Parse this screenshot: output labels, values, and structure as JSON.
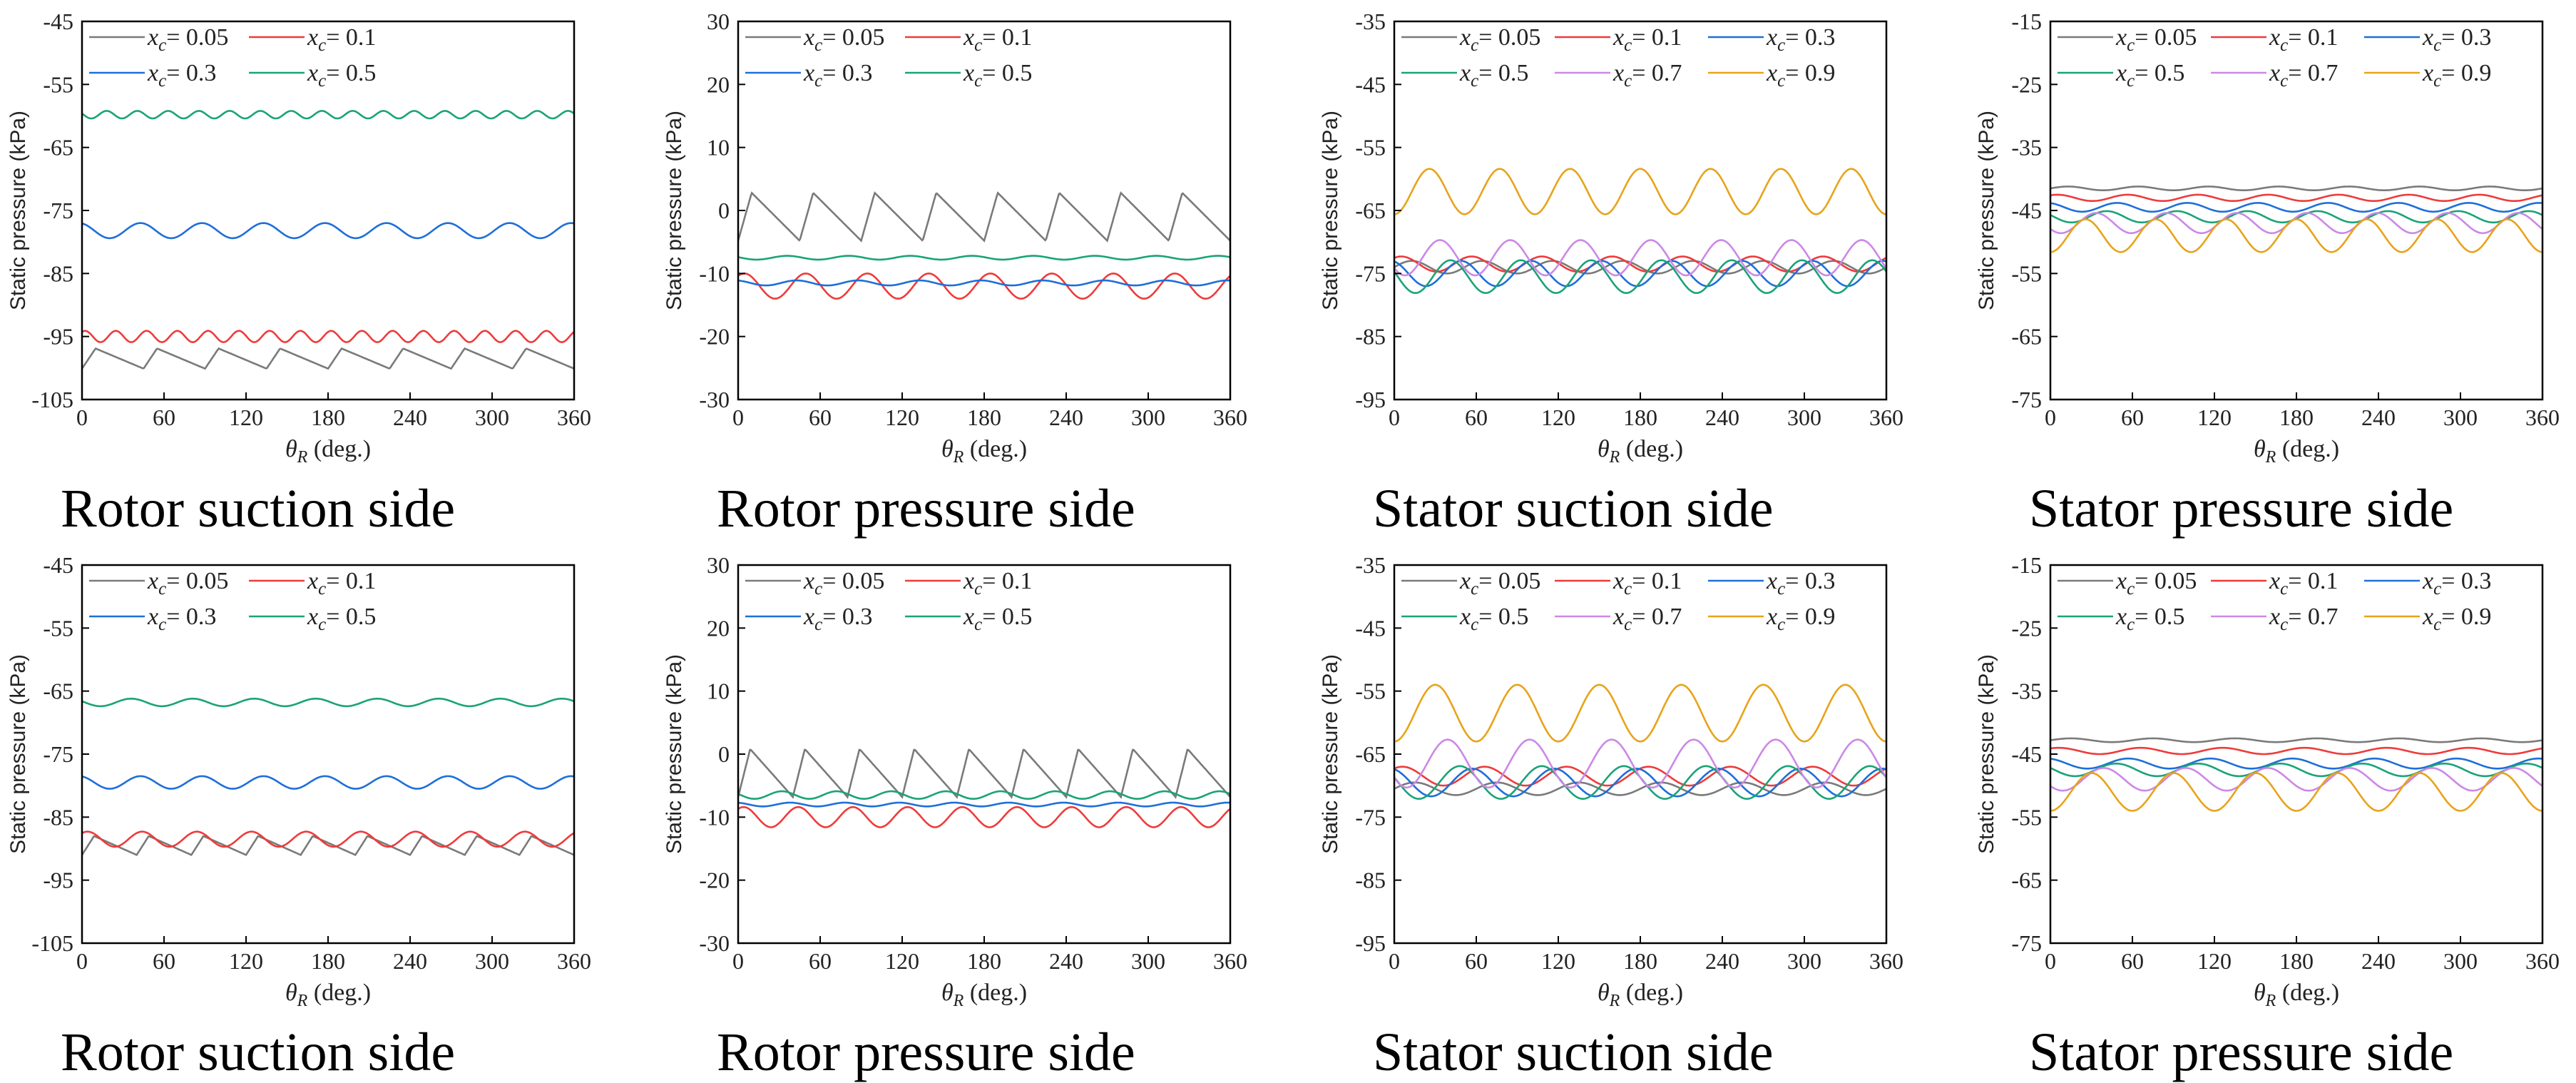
{
  "colors": {
    "x005": "#7a7a7a",
    "x01": "#ee3b3b",
    "x03": "#1e6fd9",
    "x05": "#1aa378",
    "x07": "#cc88e6",
    "x09": "#e8a31a"
  },
  "xlabel": "θR (deg.)",
  "ylabel": "Static pressure (kPa)",
  "chart_data": [
    {
      "type": "line",
      "title": "Rotor suction side",
      "ylim": [
        -105,
        -45
      ],
      "yticks": [
        -45,
        -55,
        -65,
        -75,
        -85,
        -95,
        -105
      ],
      "xlim": [
        0,
        360
      ],
      "xticks": [
        0,
        60,
        120,
        180,
        240,
        300,
        360
      ],
      "legend_cols": 2,
      "series": [
        {
          "name": "xc= 0.05",
          "color": "x005",
          "mean": -98.5,
          "amp": 1.6,
          "periods": 8,
          "shape": "saw"
        },
        {
          "name": "xc= 0.1",
          "color": "x01",
          "mean": -95.0,
          "amp": 0.9,
          "periods": 16,
          "shape": "sin"
        },
        {
          "name": "xc= 0.3",
          "color": "x03",
          "mean": -78.2,
          "amp": 1.2,
          "periods": 8,
          "shape": "sin"
        },
        {
          "name": "xc= 0.5",
          "color": "x05",
          "mean": -59.8,
          "amp": 0.6,
          "periods": 16,
          "shape": "sin"
        }
      ]
    },
    {
      "type": "line",
      "title": "Rotor pressure side",
      "ylim": [
        -30,
        30
      ],
      "yticks": [
        30,
        20,
        10,
        0,
        -10,
        -20,
        -30
      ],
      "xlim": [
        0,
        360
      ],
      "xticks": [
        0,
        60,
        120,
        180,
        240,
        300,
        360
      ],
      "legend_cols": 2,
      "series": [
        {
          "name": "xc= 0.05",
          "color": "x005",
          "mean": -1.0,
          "amp": 3.8,
          "periods": 8,
          "shape": "saw"
        },
        {
          "name": "xc= 0.1",
          "color": "x01",
          "mean": -12.0,
          "amp": 2.0,
          "periods": 8,
          "shape": "sin"
        },
        {
          "name": "xc= 0.3",
          "color": "x03",
          "mean": -11.5,
          "amp": 0.4,
          "periods": 8,
          "shape": "sin"
        },
        {
          "name": "xc= 0.5",
          "color": "x05",
          "mean": -7.5,
          "amp": 0.3,
          "periods": 8,
          "shape": "sin"
        }
      ]
    },
    {
      "type": "line",
      "title": "Stator suction side",
      "ylim": [
        -95,
        -35
      ],
      "yticks": [
        -35,
        -45,
        -55,
        -65,
        -75,
        -85,
        -95
      ],
      "xlim": [
        0,
        360
      ],
      "xticks": [
        0,
        60,
        120,
        180,
        240,
        300,
        360
      ],
      "legend_cols": 3,
      "series": [
        {
          "name": "xc= 0.05",
          "color": "x005",
          "mean": -74.0,
          "amp": 1.0,
          "periods": 7,
          "shape": "sin"
        },
        {
          "name": "xc= 0.1",
          "color": "x01",
          "mean": -73.5,
          "amp": 1.2,
          "periods": 7,
          "shape": "sin"
        },
        {
          "name": "xc= 0.3",
          "color": "x03",
          "mean": -75.0,
          "amp": 2.0,
          "periods": 7,
          "shape": "sin"
        },
        {
          "name": "xc= 0.5",
          "color": "x05",
          "mean": -75.5,
          "amp": 2.6,
          "periods": 7,
          "shape": "sin"
        },
        {
          "name": "xc= 0.7",
          "color": "x07",
          "mean": -72.5,
          "amp": 2.8,
          "periods": 7,
          "shape": "sin"
        },
        {
          "name": "xc= 0.9",
          "color": "x09",
          "mean": -62.0,
          "amp": 3.6,
          "periods": 7,
          "shape": "sin"
        }
      ]
    },
    {
      "type": "line",
      "title": "Stator pressure side",
      "ylim": [
        -75,
        -15
      ],
      "yticks": [
        -15,
        -25,
        -35,
        -45,
        -55,
        -65,
        -75
      ],
      "xlim": [
        0,
        360
      ],
      "xticks": [
        0,
        60,
        120,
        180,
        240,
        300,
        360
      ],
      "legend_cols": 3,
      "series": [
        {
          "name": "xc= 0.05",
          "color": "x005",
          "mean": -41.5,
          "amp": 0.3,
          "periods": 7,
          "shape": "sin"
        },
        {
          "name": "xc= 0.1",
          "color": "x01",
          "mean": -43.0,
          "amp": 0.5,
          "periods": 7,
          "shape": "sin"
        },
        {
          "name": "xc= 0.3",
          "color": "x03",
          "mean": -44.5,
          "amp": 0.7,
          "periods": 7,
          "shape": "sin"
        },
        {
          "name": "xc= 0.5",
          "color": "x05",
          "mean": -46.0,
          "amp": 0.9,
          "periods": 7,
          "shape": "sin"
        },
        {
          "name": "xc= 0.7",
          "color": "x07",
          "mean": -47.0,
          "amp": 1.6,
          "periods": 7,
          "shape": "sin"
        },
        {
          "name": "xc= 0.9",
          "color": "x09",
          "mean": -49.0,
          "amp": 2.6,
          "periods": 7,
          "shape": "sin"
        }
      ]
    },
    {
      "type": "line",
      "title": "Rotor suction side",
      "ylim": [
        -105,
        -45
      ],
      "yticks": [
        -45,
        -55,
        -65,
        -75,
        -85,
        -95,
        -105
      ],
      "xlim": [
        0,
        360
      ],
      "xticks": [
        0,
        60,
        120,
        180,
        240,
        300,
        360
      ],
      "legend_cols": 2,
      "series": [
        {
          "name": "xc= 0.05",
          "color": "x005",
          "mean": -89.5,
          "amp": 1.5,
          "periods": 9,
          "shape": "saw"
        },
        {
          "name": "xc= 0.1",
          "color": "x01",
          "mean": -88.5,
          "amp": 1.2,
          "periods": 9,
          "shape": "sin"
        },
        {
          "name": "xc= 0.3",
          "color": "x03",
          "mean": -79.5,
          "amp": 1.0,
          "periods": 8,
          "shape": "sin"
        },
        {
          "name": "xc= 0.5",
          "color": "x05",
          "mean": -66.8,
          "amp": 0.6,
          "periods": 8,
          "shape": "sin"
        }
      ]
    },
    {
      "type": "line",
      "title": "Rotor pressure side",
      "ylim": [
        -30,
        30
      ],
      "yticks": [
        30,
        20,
        10,
        0,
        -10,
        -20,
        -30
      ],
      "xlim": [
        0,
        360
      ],
      "xticks": [
        0,
        60,
        120,
        180,
        240,
        300,
        360
      ],
      "legend_cols": 2,
      "series": [
        {
          "name": "xc= 0.05",
          "color": "x005",
          "mean": -3.0,
          "amp": 3.8,
          "periods": 9,
          "shape": "saw"
        },
        {
          "name": "xc= 0.1",
          "color": "x01",
          "mean": -10.0,
          "amp": 1.6,
          "periods": 9,
          "shape": "sin"
        },
        {
          "name": "xc= 0.3",
          "color": "x03",
          "mean": -8.0,
          "amp": 0.3,
          "periods": 9,
          "shape": "sin"
        },
        {
          "name": "xc= 0.5",
          "color": "x05",
          "mean": -6.5,
          "amp": 0.6,
          "periods": 9,
          "shape": "sin"
        }
      ]
    },
    {
      "type": "line",
      "title": "Stator suction side",
      "ylim": [
        -95,
        -35
      ],
      "yticks": [
        -35,
        -45,
        -55,
        -65,
        -75,
        -85,
        -95
      ],
      "xlim": [
        0,
        360
      ],
      "xticks": [
        0,
        60,
        120,
        180,
        240,
        300,
        360
      ],
      "legend_cols": 3,
      "series": [
        {
          "name": "xc= 0.05",
          "color": "x005",
          "mean": -70.5,
          "amp": 1.0,
          "periods": 6,
          "shape": "sin"
        },
        {
          "name": "xc= 0.1",
          "color": "x01",
          "mean": -68.5,
          "amp": 1.5,
          "periods": 6,
          "shape": "sin"
        },
        {
          "name": "xc= 0.3",
          "color": "x03",
          "mean": -69.5,
          "amp": 2.2,
          "periods": 6,
          "shape": "sin"
        },
        {
          "name": "xc= 0.5",
          "color": "x05",
          "mean": -69.5,
          "amp": 2.6,
          "periods": 6,
          "shape": "sin"
        },
        {
          "name": "xc= 0.7",
          "color": "x07",
          "mean": -66.5,
          "amp": 3.8,
          "periods": 6,
          "shape": "sin"
        },
        {
          "name": "xc= 0.9",
          "color": "x09",
          "mean": -58.5,
          "amp": 4.5,
          "periods": 6,
          "shape": "sin"
        }
      ]
    },
    {
      "type": "line",
      "title": "Stator pressure side",
      "ylim": [
        -75,
        -15
      ],
      "yticks": [
        -15,
        -25,
        -35,
        -45,
        -55,
        -65,
        -75
      ],
      "xlim": [
        0,
        360
      ],
      "xticks": [
        0,
        60,
        120,
        180,
        240,
        300,
        360
      ],
      "legend_cols": 3,
      "series": [
        {
          "name": "xc= 0.05",
          "color": "x005",
          "mean": -42.8,
          "amp": 0.3,
          "periods": 6,
          "shape": "sin"
        },
        {
          "name": "xc= 0.1",
          "color": "x01",
          "mean": -44.5,
          "amp": 0.5,
          "periods": 6,
          "shape": "sin"
        },
        {
          "name": "xc= 0.3",
          "color": "x03",
          "mean": -46.5,
          "amp": 0.8,
          "periods": 6,
          "shape": "sin"
        },
        {
          "name": "xc= 0.5",
          "color": "x05",
          "mean": -47.5,
          "amp": 1.0,
          "periods": 6,
          "shape": "sin"
        },
        {
          "name": "xc= 0.7",
          "color": "x07",
          "mean": -49.0,
          "amp": 1.8,
          "periods": 6,
          "shape": "sin"
        },
        {
          "name": "xc= 0.9",
          "color": "x09",
          "mean": -51.0,
          "amp": 3.0,
          "periods": 6,
          "shape": "sin"
        }
      ]
    }
  ]
}
